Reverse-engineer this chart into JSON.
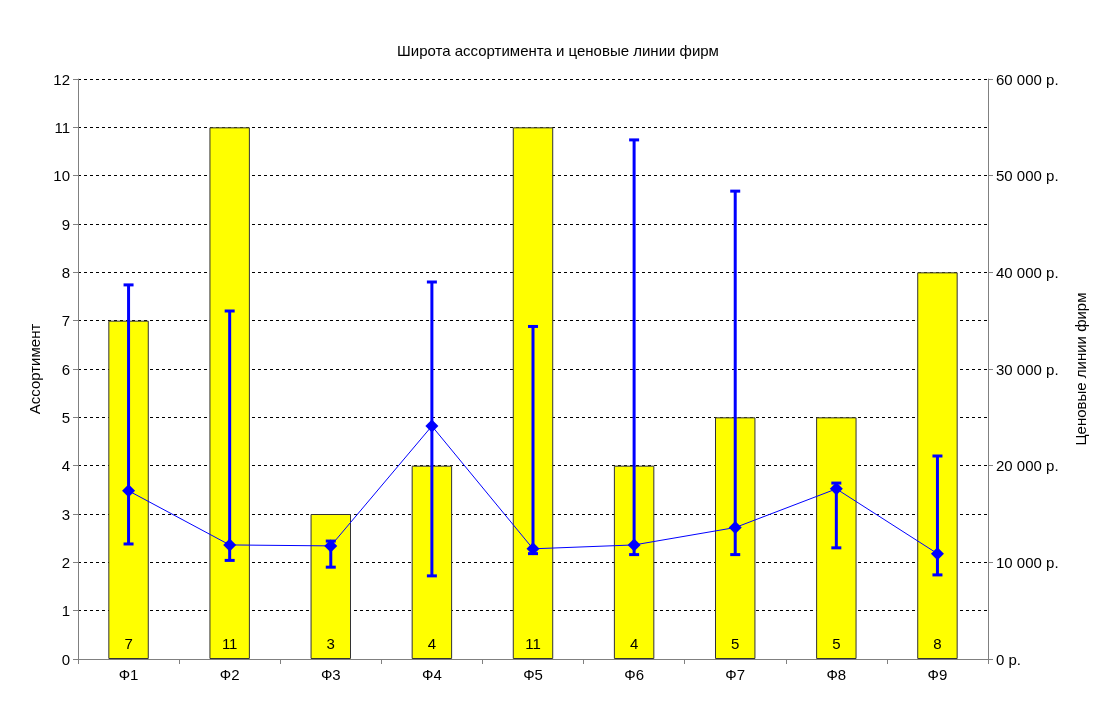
{
  "chart_data": {
    "type": "bar",
    "title": "Широта ассортимента и ценовые линии фирм",
    "ylabel": "Ассортимент",
    "y2label": "Ценовые линии фирм",
    "categories": [
      "Ф1",
      "Ф2",
      "Ф3",
      "Ф4",
      "Ф5",
      "Ф6",
      "Ф7",
      "Ф8",
      "Ф9"
    ],
    "series": [
      {
        "color": "#ffff00",
        "values": [
          7,
          11,
          3,
          4,
          11,
          4,
          5,
          5,
          8
        ],
        "data_labels": true
      },
      {
        "type": "line",
        "axis": "y2",
        "color": "#0000ff",
        "marker": "diamond",
        "line_style": "solid",
        "values": [
          17400,
          11800,
          11700,
          24100,
          11400,
          11800,
          13600,
          17600,
          10900
        ],
        "errors": [
          [
            11900,
            38700
          ],
          [
            10200,
            36000
          ],
          [
            9500,
            12200
          ],
          [
            8600,
            39000
          ],
          [
            10900,
            34400
          ],
          [
            10800,
            53700
          ],
          [
            10800,
            48400
          ],
          [
            11500,
            18200
          ],
          [
            8700,
            21000
          ]
        ]
      }
    ],
    "ylim": [
      0,
      12
    ],
    "yticks": [
      0,
      1,
      2,
      3,
      4,
      5,
      6,
      7,
      8,
      9,
      10,
      11,
      12
    ],
    "y2lim": [
      0,
      60000
    ],
    "y2ticks": [
      {
        "value": 0,
        "label": "0 р."
      },
      {
        "value": 10000,
        "label": "10 000 р."
      },
      {
        "value": 20000,
        "label": "20 000 р."
      },
      {
        "value": 30000,
        "label": "30 000 р."
      },
      {
        "value": 40000,
        "label": "40 000 р."
      },
      {
        "value": 50000,
        "label": "50 000 р."
      },
      {
        "value": 60000,
        "label": "60 000 р."
      }
    ],
    "grid": "y"
  }
}
